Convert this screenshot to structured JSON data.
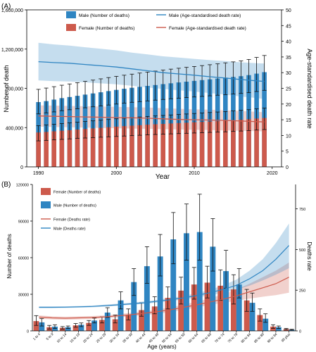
{
  "chart_data": [
    {
      "panel": "(A)",
      "type": "bar",
      "xlabel": "Year",
      "ylabel": "Number of death",
      "ylabel_right": "Age-standardised death rate",
      "xlim": [
        1988.5,
        2021.2
      ],
      "ylim": [
        0,
        1600000
      ],
      "ylim_right": [
        0,
        50
      ],
      "xticks": [
        1990,
        2000,
        2010,
        2020
      ],
      "yticks": [
        0,
        400000,
        800000,
        1200000,
        1600000
      ],
      "yticks_right": [
        0,
        5,
        10,
        15,
        20,
        25,
        30,
        35,
        40,
        45,
        50
      ],
      "legend_position": "top",
      "legend": [
        {
          "label": "Male (Number of deaths)",
          "kind": "bar",
          "color": "#2f85c2"
        },
        {
          "label": "Female (Number of deaths)",
          "kind": "bar",
          "color": "#cd5a4c"
        },
        {
          "label": "Male (Age-standardised death rate)",
          "kind": "line",
          "color": "#2f85c2"
        },
        {
          "label": "Female (Age-standardised death rate)",
          "kind": "line",
          "color": "#cd5a4c"
        }
      ],
      "x": [
        1990,
        1991,
        1992,
        1993,
        1994,
        1995,
        1996,
        1997,
        1998,
        1999,
        2000,
        2001,
        2002,
        2003,
        2004,
        2005,
        2006,
        2007,
        2008,
        2009,
        2010,
        2011,
        2012,
        2013,
        2014,
        2015,
        2016,
        2017,
        2018,
        2019
      ],
      "bar_series": [
        {
          "name": "Male (Number of deaths)",
          "color": "#2f85c2",
          "values": [
            660000,
            670000,
            685000,
            700000,
            712000,
            724000,
            736000,
            748000,
            760000,
            772000,
            784000,
            796000,
            806000,
            816000,
            825000,
            834000,
            843000,
            852000,
            860000,
            868000,
            876000,
            884000,
            892000,
            900000,
            908000,
            916000,
            924000,
            935000,
            950000,
            965000
          ],
          "err_low": [
            540000,
            550000,
            560000,
            572000,
            582000,
            592000,
            602000,
            612000,
            620000,
            630000,
            640000,
            650000,
            658000,
            665000,
            672000,
            680000,
            687000,
            694000,
            700000,
            706000,
            712000,
            718000,
            724000,
            730000,
            736000,
            742000,
            748000,
            756000,
            768000,
            780000
          ],
          "err_high": [
            790000,
            803000,
            817000,
            832000,
            845000,
            858000,
            871000,
            884000,
            897000,
            910000,
            922000,
            934000,
            945000,
            956000,
            966000,
            976000,
            986000,
            996000,
            1005000,
            1014000,
            1023000,
            1032000,
            1041000,
            1050000,
            1060000,
            1070000,
            1080000,
            1095000,
            1115000,
            1135000
          ]
        },
        {
          "name": "Female (Number of deaths)",
          "color": "#cd5a4c",
          "values": [
            350000,
            356000,
            362000,
            368000,
            374000,
            380000,
            386000,
            392000,
            398000,
            404000,
            410000,
            415000,
            420000,
            425000,
            430000,
            434000,
            438000,
            442000,
            446000,
            450000,
            454000,
            458000,
            462000,
            466000,
            470000,
            475000,
            480000,
            486000,
            492000,
            498000
          ],
          "err_low": [
            265000,
            270000,
            275000,
            280000,
            285000,
            290000,
            294000,
            298000,
            302000,
            306000,
            310000,
            314000,
            318000,
            322000,
            326000,
            330000,
            333000,
            336000,
            339000,
            342000,
            345000,
            348000,
            351000,
            354000,
            357000,
            361000,
            365000,
            370000,
            375000,
            380000
          ],
          "err_high": [
            420000,
            427000,
            434000,
            441000,
            448000,
            455000,
            462000,
            469000,
            476000,
            483000,
            490000,
            496000,
            502000,
            508000,
            514000,
            519000,
            524000,
            529000,
            534000,
            539000,
            544000,
            549000,
            554000,
            559000,
            564000,
            570000,
            576000,
            583000,
            591000,
            599000
          ]
        }
      ],
      "line_series": [
        {
          "name": "Male (Age-standardised death rate)",
          "color": "#2f85c2",
          "x": [
            1990,
            1992,
            1994,
            1996,
            1998,
            2000,
            2002,
            2004,
            2006,
            2008,
            2010,
            2012,
            2014,
            2016,
            2018,
            2019
          ],
          "values": [
            33.5,
            33.2,
            33.0,
            32.6,
            32.2,
            31.8,
            31.2,
            30.6,
            30.0,
            29.6,
            29.2,
            28.7,
            28.3,
            27.8,
            27.4,
            27.2
          ],
          "lower": [
            27.5,
            27.3,
            27.2,
            26.9,
            26.6,
            26.3,
            25.8,
            25.3,
            24.8,
            24.4,
            24.0,
            23.5,
            23.0,
            22.4,
            21.9,
            21.6
          ],
          "upper": [
            39.5,
            39.0,
            38.6,
            38.1,
            37.6,
            37.1,
            36.4,
            35.8,
            35.2,
            34.8,
            34.4,
            34.0,
            33.7,
            33.3,
            33.0,
            32.9
          ]
        },
        {
          "name": "Female (Age-standardised death rate)",
          "color": "#cd5a4c",
          "x": [
            1990,
            1992,
            1994,
            1996,
            1998,
            2000,
            2002,
            2004,
            2006,
            2008,
            2010,
            2012,
            2014,
            2016,
            2018,
            2019
          ],
          "values": [
            16.2,
            16.1,
            16.0,
            15.9,
            15.8,
            15.7,
            15.6,
            15.5,
            15.3,
            15.1,
            15.0,
            14.9,
            14.8,
            14.6,
            14.4,
            14.3
          ],
          "lower": [
            12.8,
            12.7,
            12.6,
            12.5,
            12.4,
            12.3,
            12.2,
            12.1,
            12.0,
            11.9,
            11.8,
            11.7,
            11.6,
            11.5,
            11.4,
            11.3
          ],
          "upper": [
            19.6,
            19.5,
            19.4,
            19.3,
            19.2,
            19.1,
            19.0,
            18.9,
            18.7,
            18.5,
            18.3,
            18.2,
            18.0,
            17.8,
            17.5,
            17.4
          ]
        }
      ]
    },
    {
      "panel": "(B)",
      "type": "bar",
      "xlabel": "Age (years)",
      "ylabel": "Number of deaths",
      "ylabel_right": "Deaths rate",
      "ylim": [
        0,
        120000
      ],
      "ylim_right": [
        0,
        900
      ],
      "yticks": [
        0,
        30000,
        60000,
        90000,
        120000
      ],
      "yticks_right": [
        0,
        250,
        500,
        750
      ],
      "legend_position": "top-left",
      "legend": [
        {
          "label": "Female (Number of deaths)",
          "kind": "bar",
          "color": "#cd5a4c"
        },
        {
          "label": "Male (Number of deaths)",
          "kind": "bar",
          "color": "#2f85c2"
        },
        {
          "label": "Female (Deaths rate)",
          "kind": "line",
          "color": "#cd5a4c"
        },
        {
          "label": "Male (Deaths rate)",
          "kind": "line",
          "color": "#2f85c2"
        }
      ],
      "categories": [
        "1 to 4",
        "5 to 9",
        "10 to 14",
        "15 to 19",
        "20 to 24",
        "25 to 29",
        "30 to 34",
        "35 to 39",
        "40 to 44",
        "45 to 49",
        "50 to 54",
        "55 to 59",
        "60 to 64",
        "65 to 69",
        "70 to 74",
        "75 to 79",
        "80 to 84",
        "85 to 89",
        "90 to 94",
        "95 plus"
      ],
      "bar_series": [
        {
          "name": "Female (Number of deaths)",
          "color": "#cd5a4c",
          "values": [
            8000,
            3000,
            2500,
            4500,
            6500,
            9000,
            9500,
            13000,
            17000,
            20000,
            27000,
            33000,
            38000,
            39500,
            37000,
            34000,
            25000,
            13000,
            3500,
            1500
          ],
          "err_low": [
            4500,
            1500,
            1500,
            3000,
            4500,
            6500,
            6500,
            9000,
            12000,
            14000,
            18000,
            22000,
            26000,
            27000,
            25000,
            22000,
            16000,
            8000,
            2000,
            1000
          ],
          "err_high": [
            12500,
            4500,
            3500,
            6000,
            8500,
            11500,
            13000,
            18000,
            23000,
            28000,
            36000,
            44000,
            52000,
            53000,
            50000,
            46000,
            34000,
            18000,
            5000,
            2000
          ]
        },
        {
          "name": "Male (Number of deaths)",
          "color": "#2f85c2",
          "values": [
            7000,
            3500,
            3000,
            5000,
            8500,
            15000,
            25000,
            40000,
            53000,
            61000,
            75000,
            80000,
            81000,
            69000,
            49000,
            38000,
            23000,
            10000,
            3000,
            1000
          ],
          "err_low": [
            4000,
            2000,
            2000,
            3500,
            6500,
            11000,
            18000,
            29000,
            39000,
            45000,
            55000,
            58000,
            58000,
            49000,
            35000,
            27000,
            16000,
            7000,
            2000,
            700
          ],
          "err_high": [
            10000,
            5000,
            4000,
            6500,
            10500,
            19000,
            32000,
            51000,
            69000,
            79000,
            97000,
            104000,
            112000,
            92000,
            66000,
            51000,
            31000,
            14000,
            4000,
            1300
          ]
        }
      ],
      "line_series": [
        {
          "name": "Female (Deaths rate)",
          "color": "#cd5a4c",
          "values": [
            85,
            80,
            78,
            80,
            82,
            86,
            92,
            100,
            108,
            118,
            130,
            145,
            160,
            178,
            195,
            215,
            240,
            265,
            290,
            330
          ],
          "lower": [
            75,
            71,
            69,
            71,
            73,
            77,
            82,
            89,
            96,
            105,
            116,
            130,
            144,
            160,
            172,
            185,
            198,
            210,
            220,
            235
          ],
          "upper": [
            95,
            89,
            87,
            89,
            91,
            95,
            102,
            111,
            120,
            131,
            145,
            162,
            180,
            200,
            225,
            255,
            290,
            330,
            370,
            420
          ]
        },
        {
          "name": "Male (Deaths rate)",
          "color": "#2f85c2",
          "values": [
            145,
            145,
            146,
            148,
            150,
            155,
            160,
            166,
            173,
            182,
            192,
            203,
            218,
            235,
            255,
            280,
            320,
            370,
            440,
            525
          ],
          "lower": [
            140,
            140,
            141,
            143,
            145,
            149,
            154,
            160,
            166,
            174,
            183,
            193,
            205,
            220,
            235,
            252,
            278,
            310,
            345,
            385
          ],
          "upper": [
            150,
            150,
            151,
            153,
            155,
            161,
            167,
            173,
            181,
            191,
            202,
            215,
            232,
            252,
            280,
            315,
            370,
            440,
            540,
            660
          ]
        }
      ]
    }
  ]
}
